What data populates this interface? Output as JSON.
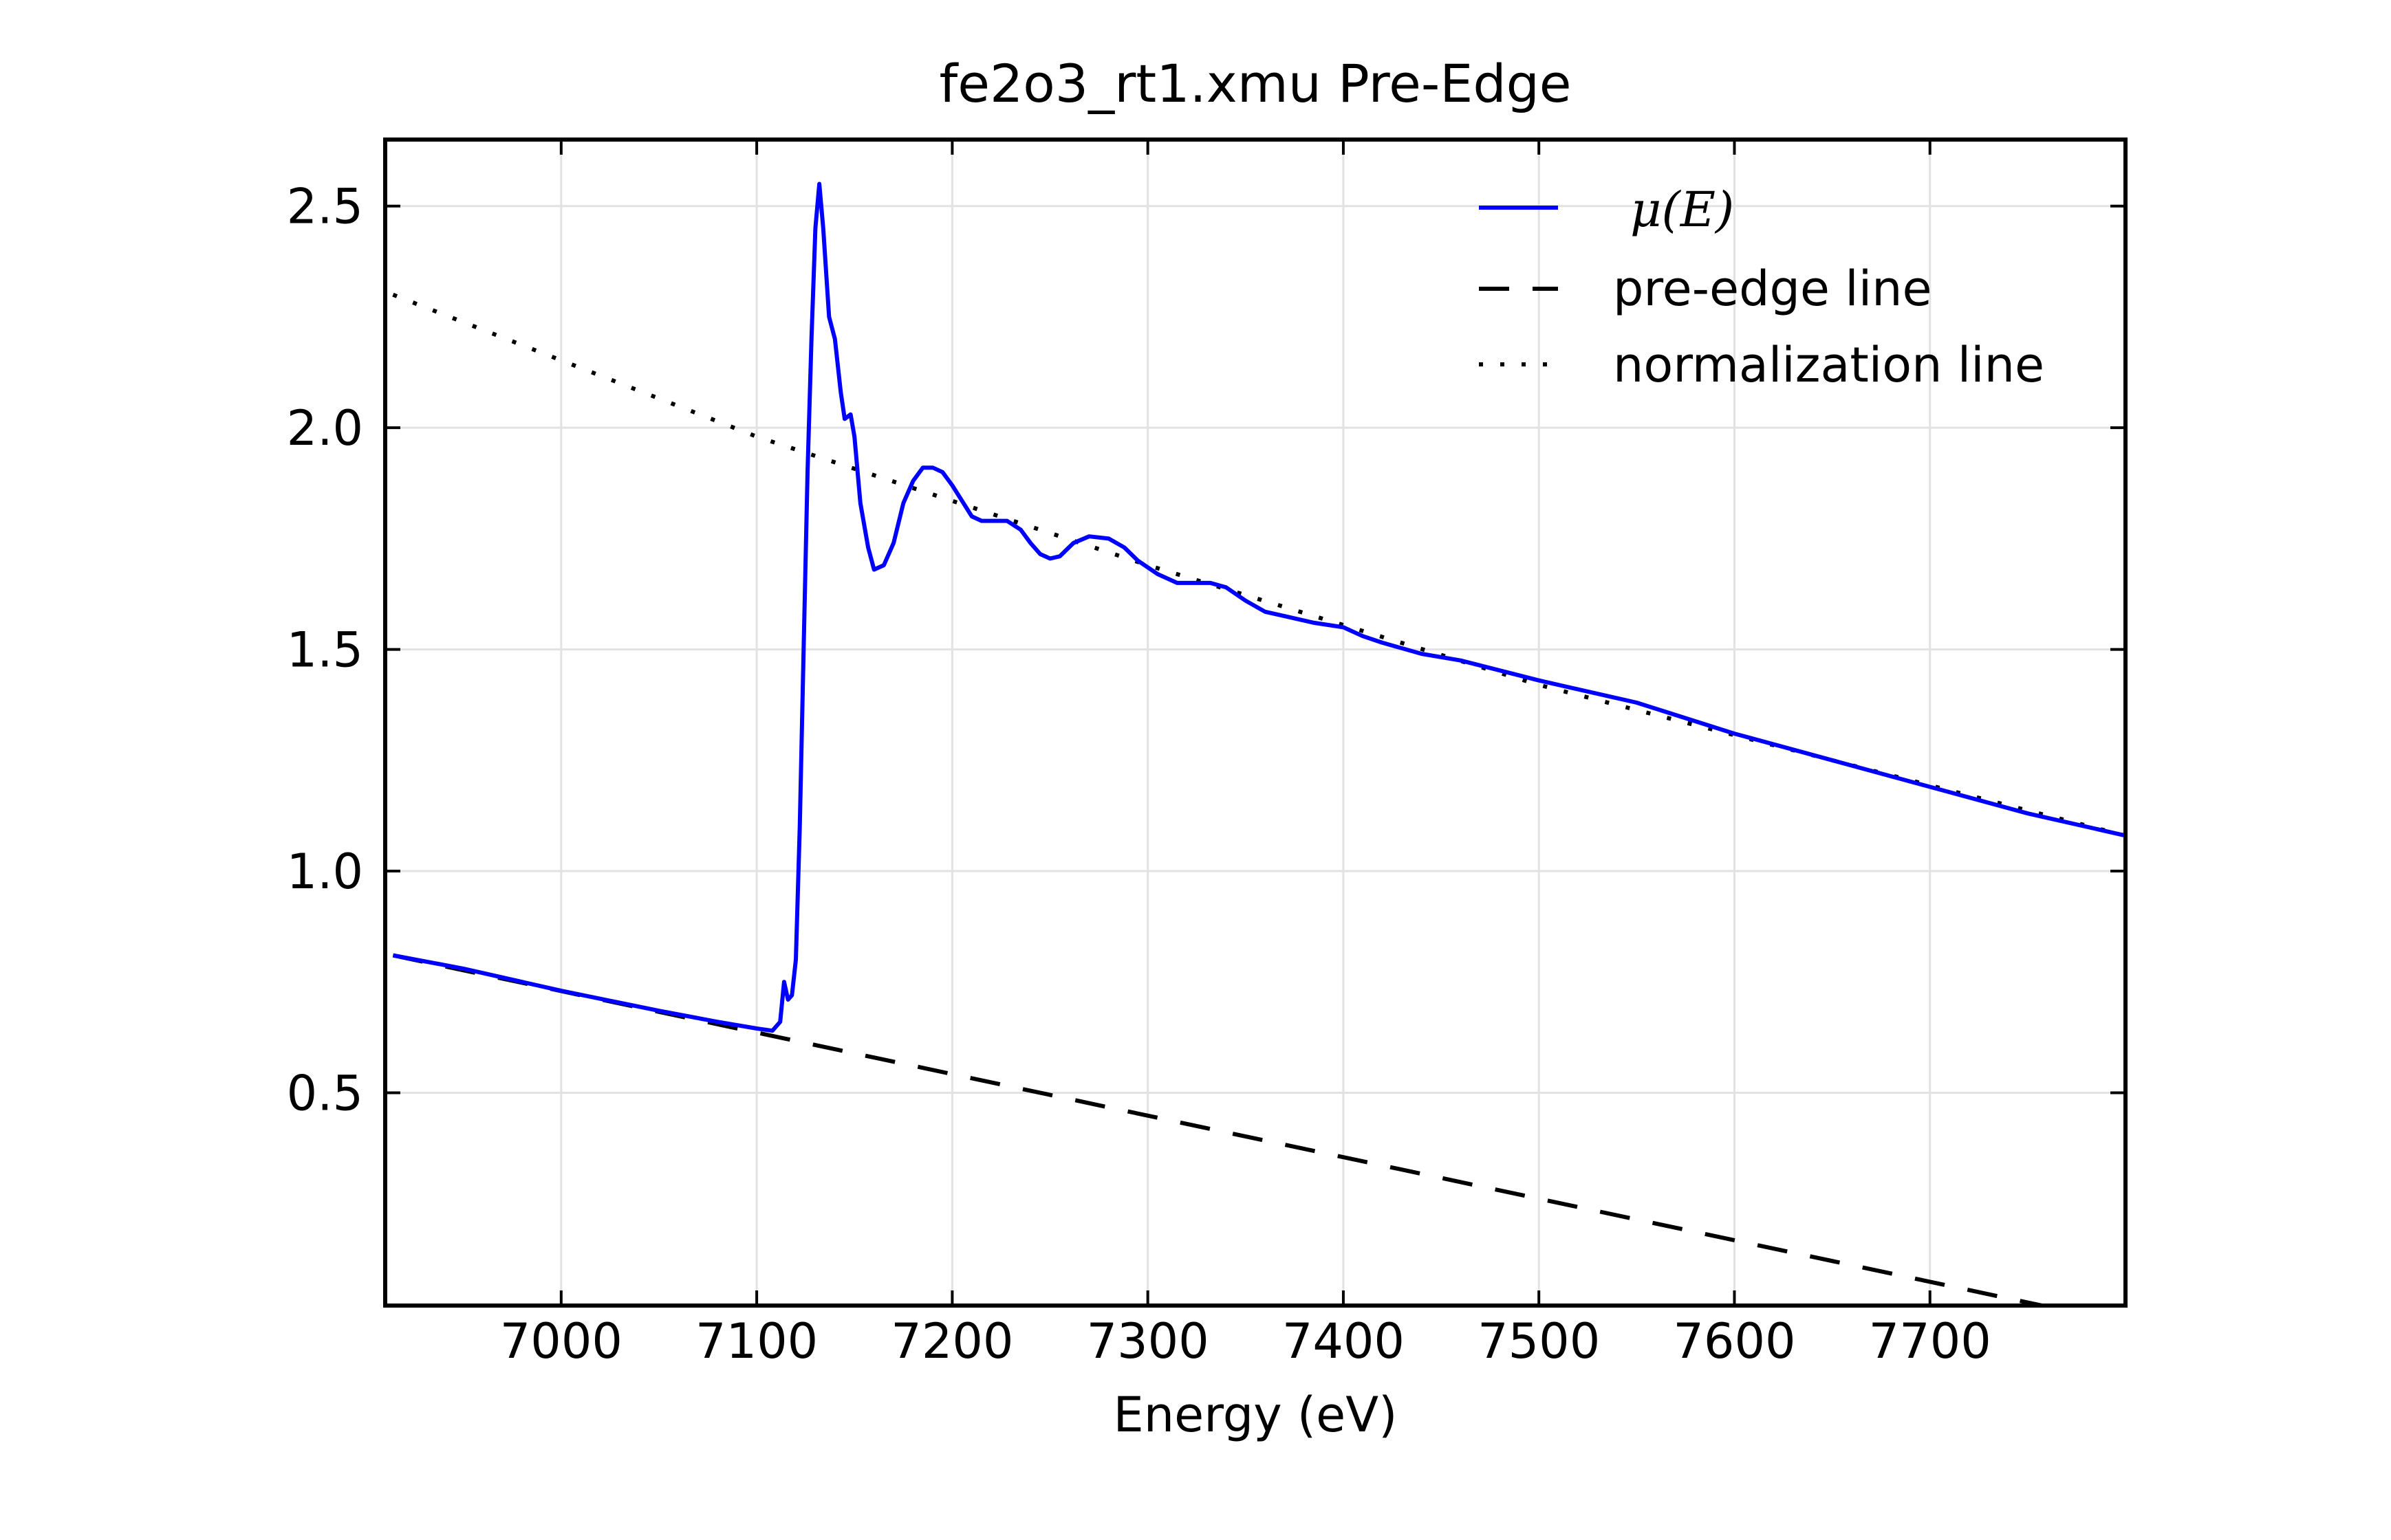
{
  "chart_data": {
    "type": "line",
    "title": "fe2o3_rt1.xmu Pre-Edge",
    "xlabel": "Energy (eV)",
    "ylabel": "",
    "xlim": [
      6910,
      7800
    ],
    "ylim": [
      0.02,
      2.65
    ],
    "grid": true,
    "legend_position": "top-right",
    "xticks": [
      7000,
      7100,
      7200,
      7300,
      7400,
      7500,
      7600,
      7700
    ],
    "xtick_labels": [
      "7000",
      "7100",
      "7200",
      "7300",
      "7400",
      "7500",
      "7600",
      "7700"
    ],
    "yticks": [
      0.5,
      1.0,
      1.5,
      2.0,
      2.5
    ],
    "ytick_labels": [
      "0.5",
      "1.0",
      "1.5",
      "2.0",
      "2.5"
    ],
    "legend_labels": {
      "mu_prefix": "μ(",
      "mu_var": "E",
      "mu_suffix": ")"
    },
    "series": [
      {
        "name": "μ(E)",
        "style": "solid",
        "color": "#0000ff",
        "points": [
          [
            6914,
            0.81
          ],
          [
            6950,
            0.78
          ],
          [
            7000,
            0.73
          ],
          [
            7050,
            0.685
          ],
          [
            7080,
            0.66
          ],
          [
            7100,
            0.645
          ],
          [
            7108,
            0.64
          ],
          [
            7112,
            0.66
          ],
          [
            7114,
            0.75
          ],
          [
            7116,
            0.71
          ],
          [
            7118,
            0.72
          ],
          [
            7120,
            0.8
          ],
          [
            7122,
            1.1
          ],
          [
            7124,
            1.5
          ],
          [
            7126,
            1.9
          ],
          [
            7128,
            2.2
          ],
          [
            7130,
            2.45
          ],
          [
            7132,
            2.55
          ],
          [
            7134,
            2.45
          ],
          [
            7137,
            2.25
          ],
          [
            7140,
            2.2
          ],
          [
            7143,
            2.08
          ],
          [
            7145,
            2.02
          ],
          [
            7148,
            2.03
          ],
          [
            7150,
            1.98
          ],
          [
            7153,
            1.83
          ],
          [
            7157,
            1.73
          ],
          [
            7160,
            1.68
          ],
          [
            7165,
            1.69
          ],
          [
            7170,
            1.74
          ],
          [
            7175,
            1.83
          ],
          [
            7180,
            1.88
          ],
          [
            7185,
            1.91
          ],
          [
            7190,
            1.91
          ],
          [
            7195,
            1.9
          ],
          [
            7200,
            1.87
          ],
          [
            7210,
            1.8
          ],
          [
            7215,
            1.79
          ],
          [
            7220,
            1.79
          ],
          [
            7228,
            1.79
          ],
          [
            7235,
            1.77
          ],
          [
            7240,
            1.74
          ],
          [
            7245,
            1.715
          ],
          [
            7250,
            1.705
          ],
          [
            7255,
            1.71
          ],
          [
            7262,
            1.74
          ],
          [
            7270,
            1.755
          ],
          [
            7280,
            1.75
          ],
          [
            7288,
            1.73
          ],
          [
            7295,
            1.7
          ],
          [
            7305,
            1.67
          ],
          [
            7315,
            1.65
          ],
          [
            7325,
            1.65
          ],
          [
            7332,
            1.65
          ],
          [
            7340,
            1.64
          ],
          [
            7350,
            1.61
          ],
          [
            7360,
            1.585
          ],
          [
            7370,
            1.575
          ],
          [
            7385,
            1.56
          ],
          [
            7400,
            1.55
          ],
          [
            7410,
            1.53
          ],
          [
            7420,
            1.515
          ],
          [
            7440,
            1.49
          ],
          [
            7460,
            1.475
          ],
          [
            7500,
            1.43
          ],
          [
            7550,
            1.38
          ],
          [
            7600,
            1.31
          ],
          [
            7650,
            1.25
          ],
          [
            7700,
            1.19
          ],
          [
            7750,
            1.13
          ],
          [
            7800,
            1.08
          ]
        ]
      },
      {
        "name": "pre-edge line",
        "style": "dashed",
        "color": "#000000",
        "points": [
          [
            6914,
            0.81
          ],
          [
            7800,
            -0.02
          ]
        ]
      },
      {
        "name": "normalization line",
        "style": "dotted",
        "color": "#000000",
        "points": [
          [
            6914,
            2.3
          ],
          [
            7100,
            1.98
          ],
          [
            7300,
            1.69
          ],
          [
            7500,
            1.42
          ],
          [
            7800,
            1.08
          ]
        ]
      }
    ]
  }
}
